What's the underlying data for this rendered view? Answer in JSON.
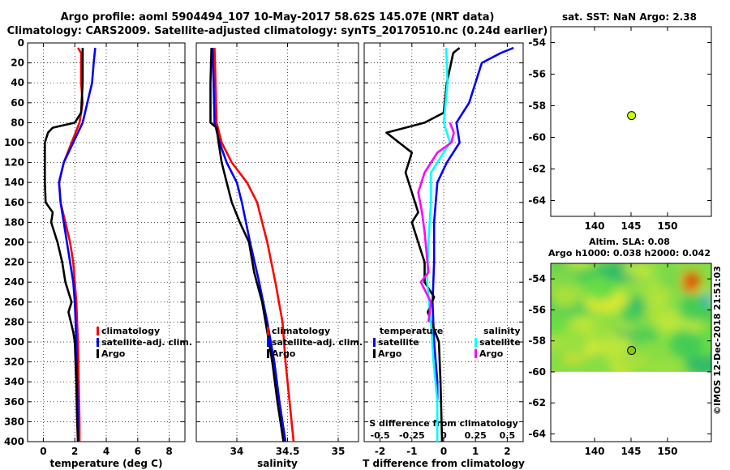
{
  "header": {
    "line1": "Argo profile: aoml 5904494_107 10-May-2017 58.62S 145.07E (NRT data)",
    "line2": "Climatology: CARS2009. Satellite-adjusted climatology: synTS_20170510.nc (0.24d earlier)"
  },
  "credit": "©IMOS 12-Dec-2018 21:51:03",
  "colors": {
    "climatology": "#ff0000",
    "satellite": "#0000ff",
    "argo": "#000000",
    "salinity_satellite": "#00ffff",
    "salinity_argo": "#ff00ff"
  },
  "chart_data": [
    {
      "type": "line",
      "id": "temperature",
      "xlabel": "temperature (deg C)",
      "ylabel": "",
      "xlim": [
        -1,
        9
      ],
      "ylim": [
        400,
        0
      ],
      "xticks": [
        0,
        2,
        4,
        6,
        8
      ],
      "xtick_labels": [
        "0",
        "2",
        "4",
        "6",
        "8"
      ],
      "yticks": [
        0,
        20,
        40,
        60,
        80,
        100,
        120,
        140,
        160,
        180,
        200,
        220,
        240,
        260,
        280,
        300,
        320,
        340,
        360,
        380,
        400
      ],
      "ytick_labels": [
        "0",
        "20",
        "40",
        "60",
        "80",
        "100",
        "120",
        "140",
        "160",
        "180",
        "200",
        "220",
        "240",
        "260",
        "280",
        "300",
        "320",
        "340",
        "360",
        "380",
        "400"
      ],
      "legend": [
        "climatology",
        "satellite-adj. clim.",
        "Argo"
      ],
      "series": [
        {
          "name": "climatology",
          "color": "#ff0000",
          "points": [
            [
              2.2,
              5
            ],
            [
              2.4,
              10
            ],
            [
              2.4,
              20
            ],
            [
              2.4,
              40
            ],
            [
              2.5,
              60
            ],
            [
              2.3,
              80
            ],
            [
              1.8,
              100
            ],
            [
              1.3,
              120
            ],
            [
              1.0,
              140
            ],
            [
              1.1,
              160
            ],
            [
              1.4,
              180
            ],
            [
              1.7,
              200
            ],
            [
              1.9,
              220
            ],
            [
              2.0,
              240
            ],
            [
              2.1,
              260
            ],
            [
              2.15,
              280
            ],
            [
              2.2,
              300
            ],
            [
              2.25,
              340
            ],
            [
              2.3,
              380
            ],
            [
              2.3,
              400
            ]
          ]
        },
        {
          "name": "satellite-adj. clim.",
          "color": "#0000ff",
          "points": [
            [
              3.3,
              5
            ],
            [
              3.2,
              20
            ],
            [
              3.1,
              40
            ],
            [
              2.8,
              60
            ],
            [
              2.5,
              80
            ],
            [
              1.9,
              100
            ],
            [
              1.3,
              120
            ],
            [
              1.0,
              140
            ],
            [
              1.1,
              160
            ],
            [
              1.3,
              180
            ],
            [
              1.5,
              200
            ],
            [
              1.7,
              220
            ],
            [
              1.9,
              240
            ],
            [
              2.0,
              260
            ],
            [
              2.05,
              280
            ],
            [
              2.1,
              300
            ],
            [
              2.15,
              340
            ],
            [
              2.2,
              380
            ],
            [
              2.2,
              400
            ]
          ]
        },
        {
          "name": "Argo",
          "color": "#000000",
          "points": [
            [
              2.5,
              5
            ],
            [
              2.5,
              40
            ],
            [
              2.4,
              70
            ],
            [
              2.0,
              80
            ],
            [
              0.6,
              85
            ],
            [
              0.3,
              90
            ],
            [
              0.1,
              100
            ],
            [
              0.1,
              120
            ],
            [
              0.1,
              140
            ],
            [
              0.15,
              160
            ],
            [
              0.6,
              170
            ],
            [
              0.5,
              180
            ],
            [
              0.9,
              200
            ],
            [
              1.2,
              220
            ],
            [
              1.4,
              240
            ],
            [
              1.8,
              260
            ],
            [
              1.6,
              270
            ],
            [
              1.9,
              290
            ],
            [
              2.0,
              300
            ],
            [
              2.1,
              340
            ],
            [
              2.15,
              380
            ],
            [
              2.2,
              400
            ]
          ]
        }
      ]
    },
    {
      "type": "line",
      "id": "salinity",
      "xlabel": "salinity",
      "ylabel": "",
      "xlim": [
        33.6,
        35.2
      ],
      "ylim": [
        400,
        0
      ],
      "xticks": [
        34,
        34.5,
        35
      ],
      "xtick_labels": [
        "34",
        "34.5",
        "35"
      ],
      "legend": [
        "climatology",
        "satellite-adj. clim.",
        "Argo"
      ],
      "series": [
        {
          "name": "climatology",
          "color": "#ff0000",
          "points": [
            [
              33.78,
              5
            ],
            [
              33.79,
              40
            ],
            [
              33.8,
              80
            ],
            [
              33.85,
              100
            ],
            [
              33.95,
              120
            ],
            [
              34.1,
              140
            ],
            [
              34.2,
              160
            ],
            [
              34.3,
              200
            ],
            [
              34.38,
              240
            ],
            [
              34.45,
              280
            ],
            [
              34.48,
              320
            ],
            [
              34.52,
              360
            ],
            [
              34.56,
              400
            ]
          ]
        },
        {
          "name": "satellite-adj. clim.",
          "color": "#0000ff",
          "points": [
            [
              33.76,
              5
            ],
            [
              33.77,
              40
            ],
            [
              33.78,
              80
            ],
            [
              33.83,
              100
            ],
            [
              33.9,
              120
            ],
            [
              34.0,
              140
            ],
            [
              34.05,
              160
            ],
            [
              34.13,
              200
            ],
            [
              34.22,
              240
            ],
            [
              34.3,
              280
            ],
            [
              34.37,
              320
            ],
            [
              34.42,
              360
            ],
            [
              34.48,
              400
            ]
          ]
        },
        {
          "name": "Argo",
          "color": "#000000",
          "points": [
            [
              33.75,
              5
            ],
            [
              33.74,
              40
            ],
            [
              33.74,
              80
            ],
            [
              33.8,
              85
            ],
            [
              33.82,
              100
            ],
            [
              33.85,
              120
            ],
            [
              33.9,
              140
            ],
            [
              33.95,
              160
            ],
            [
              34.03,
              180
            ],
            [
              34.12,
              200
            ],
            [
              34.17,
              230
            ],
            [
              34.25,
              260
            ],
            [
              34.3,
              290
            ],
            [
              34.35,
              320
            ],
            [
              34.4,
              360
            ],
            [
              34.46,
              400
            ]
          ]
        }
      ]
    },
    {
      "type": "line",
      "id": "difference",
      "xlabel": "T difference from climatology",
      "xlabel_top": "S difference from climatology",
      "xlim": [
        -2.5,
        2.5
      ],
      "ylim": [
        400,
        0
      ],
      "xticks": [
        -2,
        -1,
        0,
        1,
        2
      ],
      "xtick_labels": [
        "-2",
        "-1",
        "0",
        "1",
        "2"
      ],
      "xticks_top_labels": [
        "-0.5",
        "-0.25",
        "0",
        "0.25",
        "0.5"
      ],
      "legend_temperature": [
        "temperature",
        "satellite",
        "Argo"
      ],
      "legend_salinity": [
        "salinity",
        "satellite",
        "Argo"
      ],
      "series": [
        {
          "name": "T satellite",
          "color": "#0000ff",
          "points": [
            [
              2.2,
              5
            ],
            [
              1.8,
              10
            ],
            [
              1.2,
              20
            ],
            [
              1.0,
              40
            ],
            [
              0.8,
              60
            ],
            [
              0.4,
              80
            ],
            [
              0.5,
              100
            ],
            [
              0.1,
              120
            ],
            [
              -0.2,
              140
            ],
            [
              -0.3,
              180
            ],
            [
              -0.3,
              220
            ],
            [
              -0.35,
              260
            ],
            [
              -0.3,
              300
            ],
            [
              -0.2,
              340
            ],
            [
              -0.2,
              400
            ]
          ]
        },
        {
          "name": "T Argo",
          "color": "#000000",
          "points": [
            [
              0.5,
              5
            ],
            [
              0.3,
              10
            ],
            [
              0.1,
              40
            ],
            [
              0.0,
              70
            ],
            [
              -0.6,
              80
            ],
            [
              -1.8,
              90
            ],
            [
              -1.4,
              100
            ],
            [
              -1.0,
              110
            ],
            [
              -1.2,
              130
            ],
            [
              -1.0,
              150
            ],
            [
              -0.8,
              170
            ],
            [
              -1.0,
              180
            ],
            [
              -0.8,
              200
            ],
            [
              -0.6,
              220
            ],
            [
              -0.6,
              240
            ],
            [
              -0.3,
              255
            ],
            [
              -0.5,
              270
            ],
            [
              -0.15,
              300
            ],
            [
              -0.1,
              340
            ],
            [
              -0.05,
              400
            ]
          ]
        },
        {
          "name": "S satellite",
          "color": "#00ffff",
          "points": [
            [
              0.02,
              5
            ],
            [
              0.03,
              40
            ],
            [
              0.0,
              80
            ],
            [
              0.05,
              100
            ],
            [
              -0.1,
              130
            ],
            [
              -0.1,
              160
            ],
            [
              -0.12,
              200
            ],
            [
              -0.13,
              240
            ],
            [
              -0.1,
              280
            ],
            [
              -0.08,
              320
            ],
            [
              -0.05,
              360
            ],
            [
              -0.05,
              400
            ]
          ]
        },
        {
          "name": "S Argo",
          "color": "#ff00ff",
          "points": [
            [
              0.05,
              80
            ],
            [
              0.08,
              90
            ],
            [
              0.06,
              100
            ],
            [
              -0.05,
              110
            ],
            [
              -0.15,
              130
            ],
            [
              -0.2,
              150
            ],
            [
              -0.17,
              170
            ],
            [
              -0.15,
              190
            ],
            [
              -0.12,
              230
            ],
            [
              -0.18,
              240
            ],
            [
              -0.1,
              260
            ],
            [
              -0.12,
              280
            ]
          ]
        }
      ]
    },
    {
      "type": "scatter",
      "id": "sst-map",
      "title": "sat. SST: NaN Argo: 2.38",
      "xlim": [
        134,
        156
      ],
      "ylim": [
        -65,
        -53
      ],
      "xticks": [
        140,
        145,
        150
      ],
      "xtick_labels": [
        "140",
        "145",
        "150"
      ],
      "yticks": [
        -54,
        -56,
        -58,
        -60,
        -62,
        -64
      ],
      "ytick_labels": [
        "-54",
        "-56",
        "-58",
        "-60",
        "-62",
        "-64"
      ],
      "points": [
        {
          "x": 145.07,
          "y": -58.62,
          "color": "#ccff00"
        }
      ]
    },
    {
      "type": "heatmap",
      "id": "sla-map",
      "title_line1": "Altim. SLA: 0.08",
      "title_line2": "Argo h1000: 0.038 h2000: 0.042",
      "xlim": [
        134,
        156
      ],
      "ylim": [
        -64.5,
        -53
      ],
      "data_ylim": [
        -60,
        -53
      ],
      "xticks": [
        140,
        145,
        150
      ],
      "xtick_labels": [
        "140",
        "145",
        "150"
      ],
      "yticks": [
        -54,
        -56,
        -58,
        -60,
        -62,
        -64
      ],
      "ytick_labels": [
        "-54",
        "-56",
        "-58",
        "-60",
        "-62",
        "-64"
      ],
      "points": [
        {
          "x": 145.07,
          "y": -58.62,
          "color": "#88cc00"
        }
      ]
    }
  ]
}
